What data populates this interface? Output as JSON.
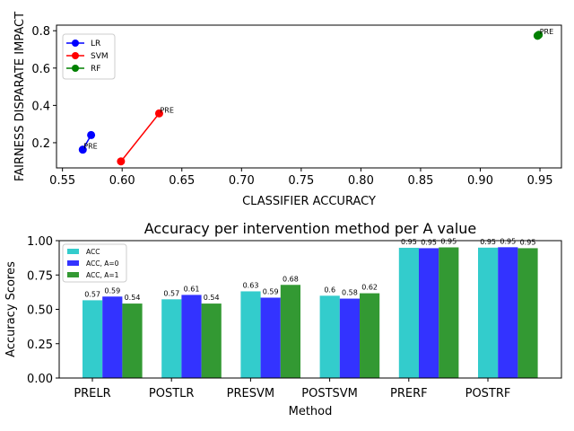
{
  "chart_data": [
    {
      "type": "line",
      "xlabel": "CLASSIFIER ACCURACY",
      "ylabel": "FAIRNESS DISPARATE IMPACT",
      "xlim": [
        0.545,
        0.968
      ],
      "ylim": [
        0.065,
        0.83
      ],
      "xticks": [
        0.55,
        0.6,
        0.65,
        0.7,
        0.75,
        0.8,
        0.85,
        0.9,
        0.95
      ],
      "xtick_labels": [
        "0.55",
        "0.60",
        "0.65",
        "0.70",
        "0.75",
        "0.80",
        "0.85",
        "0.90",
        "0.95"
      ],
      "yticks": [
        0.2,
        0.4,
        0.6,
        0.8
      ],
      "ytick_labels": [
        "0.2",
        "0.4",
        "0.6",
        "0.8"
      ],
      "legend_position": "upper-left",
      "series": [
        {
          "name": "LR",
          "color": "#0000ff",
          "x": [
            0.567,
            0.574
          ],
          "y": [
            0.163,
            0.241
          ],
          "annotation": "PRE",
          "annotation_index": 0
        },
        {
          "name": "SVM",
          "color": "#ff0000",
          "x": [
            0.599,
            0.631
          ],
          "y": [
            0.1,
            0.357
          ],
          "annotation": "PRE",
          "annotation_index": 1
        },
        {
          "name": "RF",
          "color": "#008000",
          "x": [
            0.948,
            0.949
          ],
          "y": [
            0.773,
            0.778
          ],
          "annotation": "PRE",
          "annotation_index": 1
        }
      ]
    },
    {
      "type": "bar",
      "title": "Accuracy per intervention method per A value",
      "xlabel": "Method",
      "ylabel": "Accuracy Scores",
      "ylim": [
        0,
        1.0
      ],
      "yticks": [
        0,
        0.25,
        0.5,
        0.75,
        1.0
      ],
      "ytick_labels": [
        "0.00",
        "0.25",
        "0.50",
        "0.75",
        "1.00"
      ],
      "legend_position": "upper-left",
      "categories": [
        "PRELR",
        "POSTLR",
        "PRESVM",
        "POSTSVM",
        "PRERF",
        "POSTRF"
      ],
      "series": [
        {
          "name": "ACC",
          "color": "#33cccc",
          "values": [
            0.566,
            0.573,
            0.631,
            0.599,
            0.948,
            0.949
          ],
          "labels": [
            "0.57",
            "0.57",
            "0.63",
            "0.6",
            "0.95",
            "0.95"
          ]
        },
        {
          "name": "ACC, A=0",
          "color": "#3333ff",
          "values": [
            0.593,
            0.605,
            0.585,
            0.578,
            0.945,
            0.952
          ],
          "labels": [
            "0.59",
            "0.61",
            "0.59",
            "0.58",
            "0.95",
            "0.95"
          ]
        },
        {
          "name": "ACC, A=1",
          "color": "#339933",
          "values": [
            0.542,
            0.542,
            0.678,
            0.617,
            0.951,
            0.945
          ],
          "labels": [
            "0.54",
            "0.54",
            "0.68",
            "0.62",
            "0.95",
            "0.95"
          ]
        }
      ]
    }
  ]
}
